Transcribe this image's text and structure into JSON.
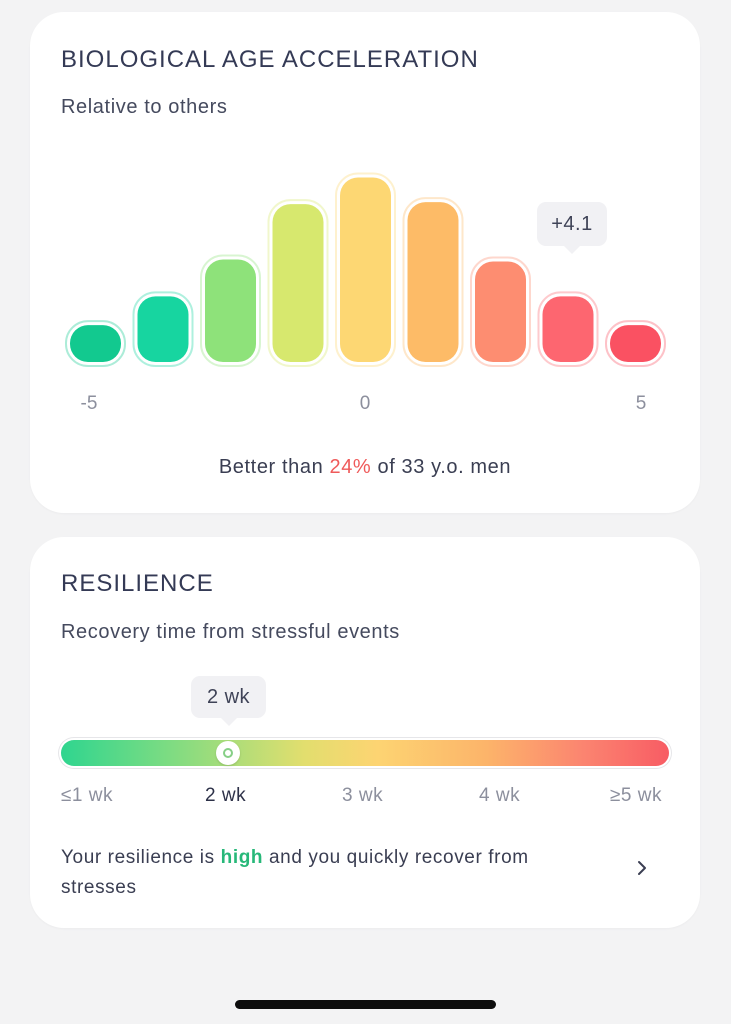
{
  "bio_age": {
    "title": "BIOLOGICAL AGE ACCELERATION",
    "subtitle": "Relative to others",
    "tooltip": "+4.1",
    "summary": {
      "prefix": "Better than ",
      "percent": "24%",
      "suffix": " of 33 y.o. men"
    },
    "colors": {
      "accent_red": "#ef5a5a"
    }
  },
  "chart_data": {
    "type": "bar",
    "title": "",
    "xlabel": "",
    "ylabel": "",
    "x_tick_labels": [
      {
        "label": "-5",
        "bin": 0
      },
      {
        "label": "0",
        "bin": 4
      },
      {
        "label": "5",
        "bin": 8
      }
    ],
    "bins": 9,
    "values": [
      18,
      32,
      50,
      77,
      90,
      78,
      49,
      32,
      18
    ],
    "ylim": [
      0,
      100
    ],
    "highlighted_bin": 7,
    "highlighted_value_label": "+4.1",
    "bar_colors": [
      "#12c98f",
      "#17d5a0",
      "#8ee27a",
      "#d7e86e",
      "#fdd773",
      "#fdbb67",
      "#fd8d71",
      "#fd6670",
      "#fa5162"
    ]
  },
  "resilience": {
    "title": "RESILIENCE",
    "subtitle": "Recovery time from stressful events",
    "tooltip": "2 wk",
    "scale": [
      "≤1 wk",
      "2 wk",
      "3 wk",
      "4 wk",
      "≥5 wk"
    ],
    "active_index": 1,
    "position_fraction": 0.27,
    "description": {
      "prefix": "Your resilience is ",
      "level": "high",
      "suffix": " and you quickly recover from stresses"
    },
    "colors": {
      "accent_green": "#27b879",
      "bar_start": "#2fd58f",
      "bar_end": "#f85c64"
    },
    "chevron_icon": "chevron-right-icon"
  }
}
